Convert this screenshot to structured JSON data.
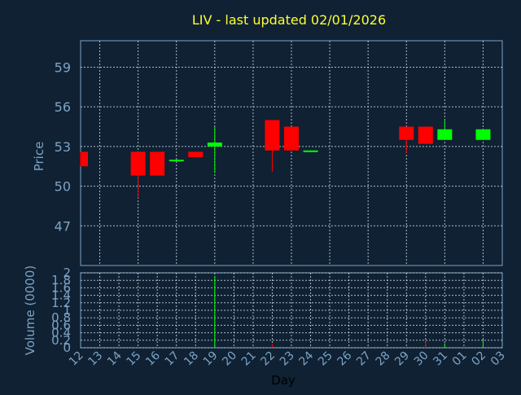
{
  "chart_data": {
    "type": "candlestick",
    "title": "LIV - last updated 02/01/2026",
    "xlabel": "Day",
    "price_axis": {
      "label": "Price",
      "ylim": [
        44,
        61
      ],
      "ticks": [
        47,
        50,
        53,
        56,
        59
      ]
    },
    "volume_axis": {
      "label": "Volume (0000)",
      "ylim": [
        0,
        2
      ],
      "ticks": [
        "0",
        "0.2",
        "0.4",
        "0.6",
        "0.8",
        "1",
        "1.2",
        "1.4",
        "1.6",
        "1.8",
        "2"
      ]
    },
    "categories": [
      "12",
      "13",
      "14",
      "15",
      "16",
      "17",
      "18",
      "19",
      "20",
      "21",
      "22",
      "23",
      "24",
      "25",
      "26",
      "27",
      "28",
      "29",
      "30",
      "31",
      "01",
      "02",
      "03"
    ],
    "grid": true,
    "colors": {
      "up": "#00ff00",
      "down": "#ff0000",
      "background": "#0f2133",
      "title": "#ffff33",
      "axis_text": "#7ea3c4"
    },
    "candles": [
      {
        "day": "12",
        "open": 52.6,
        "close": 51.5,
        "high": 52.6,
        "low": 51.5
      },
      {
        "day": "15",
        "open": 52.6,
        "close": 50.8,
        "high": 52.6,
        "low": 49.1
      },
      {
        "day": "16",
        "open": 52.6,
        "close": 50.8,
        "high": 52.6,
        "low": 50.8
      },
      {
        "day": "17",
        "open": 51.9,
        "close": 52.0,
        "high": 52.0,
        "low": 51.9
      },
      {
        "day": "18",
        "open": 52.6,
        "close": 52.2,
        "high": 52.6,
        "low": 52.2
      },
      {
        "day": "19",
        "open": 53.0,
        "close": 53.3,
        "high": 54.5,
        "low": 51.0
      },
      {
        "day": "22",
        "open": 55.0,
        "close": 52.7,
        "high": 55.0,
        "low": 51.1
      },
      {
        "day": "23",
        "open": 54.5,
        "close": 52.7,
        "high": 54.5,
        "low": 52.7
      },
      {
        "day": "24",
        "open": 52.6,
        "close": 52.7,
        "high": 52.7,
        "low": 52.6
      },
      {
        "day": "29",
        "open": 54.5,
        "close": 53.5,
        "high": 54.5,
        "low": 52.5
      },
      {
        "day": "30",
        "open": 54.5,
        "close": 53.2,
        "high": 54.5,
        "low": 53.2
      },
      {
        "day": "31",
        "open": 53.5,
        "close": 54.3,
        "high": 55.0,
        "low": 53.5
      },
      {
        "day": "02",
        "open": 53.5,
        "close": 54.3,
        "high": 54.3,
        "low": 53.5
      }
    ],
    "volume": [
      {
        "day": "19",
        "value": 1.92,
        "color": "up"
      },
      {
        "day": "22",
        "value": 0.1,
        "color": "down"
      },
      {
        "day": "30",
        "value": 0.2,
        "color": "down"
      },
      {
        "day": "31",
        "value": 0.12,
        "color": "up"
      },
      {
        "day": "02",
        "value": 0.22,
        "color": "up"
      }
    ]
  }
}
